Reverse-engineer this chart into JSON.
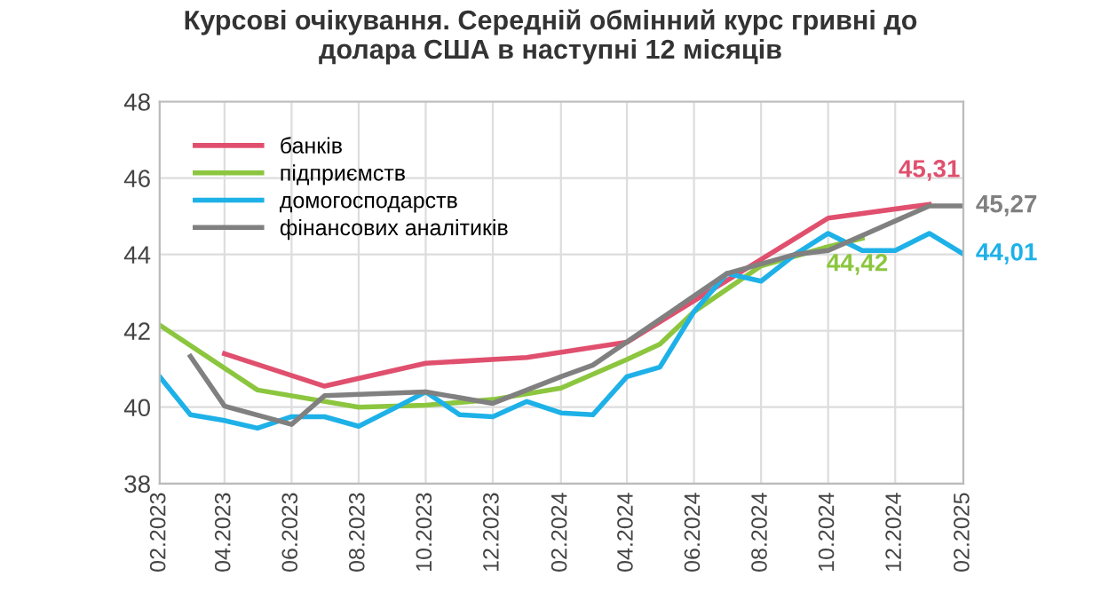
{
  "chart_data": {
    "type": "line",
    "title": "Курсові очікування. Середній обмінний курс гривні до\nдолара США в наступні 12 місяців",
    "series": [
      {
        "name": "банків",
        "color": "#e0506e",
        "x": [
          "2023-04",
          "2023-07",
          "2023-10",
          "2024-01",
          "2024-04",
          "2024-10",
          "2025-01"
        ],
        "values": [
          41.4,
          40.55,
          41.15,
          41.3,
          41.7,
          44.95,
          45.31
        ]
      },
      {
        "name": "підприємств",
        "color": "#8cc63f",
        "x": [
          "2023-02",
          "2023-05",
          "2023-08",
          "2023-10",
          "2023-12",
          "2024-02",
          "2024-04",
          "2024-05",
          "2024-06",
          "2024-08",
          "2024-10",
          "2024-11"
        ],
        "values": [
          42.15,
          40.45,
          40.0,
          40.05,
          40.2,
          40.5,
          41.25,
          41.65,
          42.5,
          43.7,
          44.2,
          44.42
        ]
      },
      {
        "name": "домогосподарств",
        "color": "#1eb1e8",
        "x": [
          "2023-02",
          "2023-03",
          "2023-04",
          "2023-05",
          "2023-06",
          "2023-07",
          "2023-08",
          "2023-09",
          "2023-10",
          "2023-11",
          "2023-12",
          "2024-01",
          "2024-02",
          "2024-03",
          "2024-04",
          "2024-05",
          "2024-06",
          "2024-07",
          "2024-08",
          "2024-09",
          "2024-10",
          "2024-11",
          "2024-12",
          "2025-01",
          "2025-02"
        ],
        "values": [
          40.8,
          39.8,
          39.65,
          39.45,
          39.75,
          39.75,
          39.5,
          39.95,
          40.4,
          39.8,
          39.75,
          40.15,
          39.85,
          39.8,
          40.8,
          41.05,
          42.5,
          43.5,
          43.3,
          44.0,
          44.55,
          44.1,
          44.1,
          44.55,
          44.01
        ]
      },
      {
        "name": "фінансових аналітиків",
        "color": "#808080",
        "x": [
          "2023-03",
          "2023-04",
          "2023-06",
          "2023-07",
          "2023-10",
          "2023-12",
          "2024-02",
          "2024-03",
          "2024-07",
          "2024-09",
          "2024-10",
          "2025-01",
          "2025-02"
        ],
        "values": [
          41.33,
          40.03,
          39.55,
          40.3,
          40.4,
          40.1,
          40.8,
          41.1,
          43.5,
          44.0,
          44.1,
          45.27,
          45.27
        ]
      }
    ],
    "annotations": [
      {
        "text": "45,31",
        "x": "2025-01",
        "y": 45.31
      },
      {
        "text": "45,27",
        "x": "2025-02",
        "y": 45.27
      },
      {
        "text": "44,01",
        "x": "2025-02",
        "y": 44.01
      },
      {
        "text": "44,42",
        "x": "2024-11",
        "y": 44.42
      }
    ],
    "xlim": [
      "2023-02",
      "2025-02"
    ],
    "xticks": [
      {
        "value": "2023-02",
        "label": "02.2023"
      },
      {
        "value": "2023-04",
        "label": "04.2023"
      },
      {
        "value": "2023-06",
        "label": "06.2023"
      },
      {
        "value": "2023-08",
        "label": "08.2023"
      },
      {
        "value": "2023-10",
        "label": "10.2023"
      },
      {
        "value": "2023-12",
        "label": "12.2023"
      },
      {
        "value": "2024-02",
        "label": "02.2024"
      },
      {
        "value": "2024-04",
        "label": "04.2024"
      },
      {
        "value": "2024-06",
        "label": "06.2024"
      },
      {
        "value": "2024-08",
        "label": "08.2024"
      },
      {
        "value": "2024-10",
        "label": "10.2024"
      },
      {
        "value": "2024-12",
        "label": "12.2024"
      },
      {
        "value": "2025-02",
        "label": "02.2025"
      }
    ],
    "ylim": [
      38,
      48
    ],
    "yticks": [
      38,
      40,
      42,
      44,
      46,
      48
    ],
    "grid": true,
    "legend": "top left",
    "line_style": "solid"
  }
}
